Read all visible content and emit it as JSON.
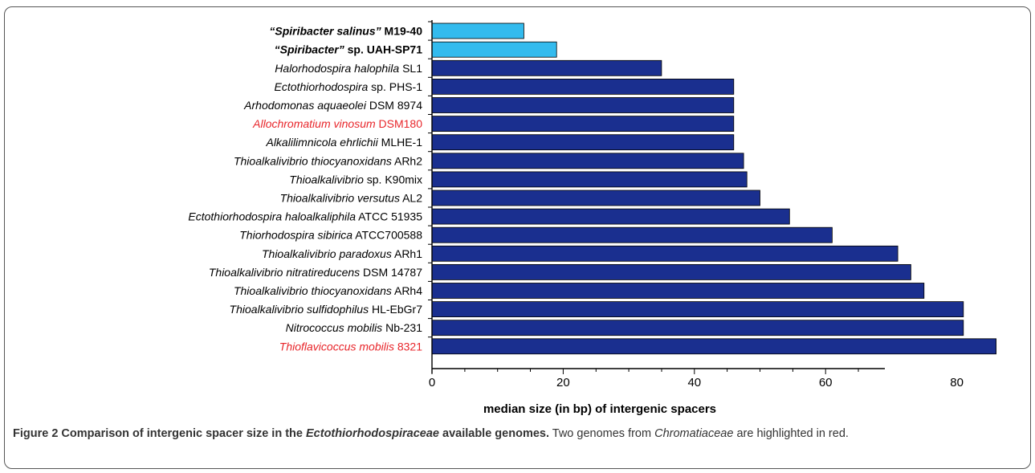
{
  "chart_data": {
    "type": "bar",
    "orientation": "horizontal",
    "xlabel": "median size (in bp) of intergenic spacers",
    "xlim": [
      0,
      90
    ],
    "xticks": [
      0,
      20,
      40,
      60,
      80
    ],
    "grid": false,
    "categories": [
      {
        "italic": "“Spiribacter salinus”",
        "plain": " M19-40",
        "bold": true,
        "color": "#000000",
        "value": 14,
        "bar_color": "#33bbee"
      },
      {
        "italic": "“Spiribacter”",
        "plain": " sp.  UAH-SP71",
        "bold": true,
        "color": "#000000",
        "value": 19,
        "bar_color": "#33bbee"
      },
      {
        "italic": "Halorhodospira halophila",
        "plain": " SL1",
        "bold": false,
        "color": "#000000",
        "value": 35,
        "bar_color": "#1a2f8f"
      },
      {
        "italic": "Ectothiorhodospira",
        "plain": " sp. PHS-1",
        "bold": false,
        "color": "#000000",
        "value": 46,
        "bar_color": "#1a2f8f"
      },
      {
        "italic": "Arhodomonas aquaeolei",
        "plain": " DSM 8974",
        "bold": false,
        "color": "#000000",
        "value": 46,
        "bar_color": "#1a2f8f"
      },
      {
        "italic": "Allochromatium vinosum",
        "plain": " DSM180",
        "bold": false,
        "color": "#e8262b",
        "value": 46,
        "bar_color": "#1a2f8f"
      },
      {
        "italic": "Alkalilimnicola ehrlichii",
        "plain": " MLHE-1",
        "bold": false,
        "color": "#000000",
        "value": 46,
        "bar_color": "#1a2f8f"
      },
      {
        "italic": "Thioalkalivibrio thiocyanoxidans",
        "plain": " ARh2",
        "bold": false,
        "color": "#000000",
        "value": 47.5,
        "bar_color": "#1a2f8f"
      },
      {
        "italic": "Thioalkalivibrio",
        "plain": " sp. K90mix",
        "bold": false,
        "color": "#000000",
        "value": 48,
        "bar_color": "#1a2f8f"
      },
      {
        "italic": "Thioalkalivibrio versutus",
        "plain": " AL2",
        "bold": false,
        "color": "#000000",
        "value": 50,
        "bar_color": "#1a2f8f"
      },
      {
        "italic": "Ectothiorhodospira haloalkaliphila",
        "plain": " ATCC 51935",
        "bold": false,
        "color": "#000000",
        "value": 54.5,
        "bar_color": "#1a2f8f"
      },
      {
        "italic": "Thiorhodospira sibirica",
        "plain": " ATCC700588",
        "bold": false,
        "color": "#000000",
        "value": 61,
        "bar_color": "#1a2f8f"
      },
      {
        "italic": "Thioalkalivibrio paradoxus",
        "plain": " ARh1",
        "bold": false,
        "color": "#000000",
        "value": 71,
        "bar_color": "#1a2f8f"
      },
      {
        "italic": "Thioalkalivibrio nitratireducens",
        "plain": " DSM 14787",
        "bold": false,
        "color": "#000000",
        "value": 73,
        "bar_color": "#1a2f8f"
      },
      {
        "italic": "Thioalkalivibrio thiocyanoxidans",
        "plain": " ARh4",
        "bold": false,
        "color": "#000000",
        "value": 75,
        "bar_color": "#1a2f8f"
      },
      {
        "italic": "Thioalkalivibrio sulfidophilus",
        "plain": " HL-EbGr7",
        "bold": false,
        "color": "#000000",
        "value": 81,
        "bar_color": "#1a2f8f"
      },
      {
        "italic": "Nitrococcus mobilis",
        "plain": " Nb-231",
        "bold": false,
        "color": "#000000",
        "value": 81,
        "bar_color": "#1a2f8f"
      },
      {
        "italic": "Thioflavicoccus mobilis",
        "plain": " 8321",
        "bold": false,
        "color": "#e8262b",
        "value": 86,
        "bar_color": "#1a2f8f"
      }
    ]
  },
  "caption": {
    "label": "Figure 2 Comparison of intergenic spacer size in the ",
    "label_italic": "Ectothiorhodospiraceae",
    "label_end": " available genomes.",
    "text_start": " Two genomes from ",
    "text_italic": "Chromatiaceae",
    "text_end": " are highlighted in red."
  }
}
